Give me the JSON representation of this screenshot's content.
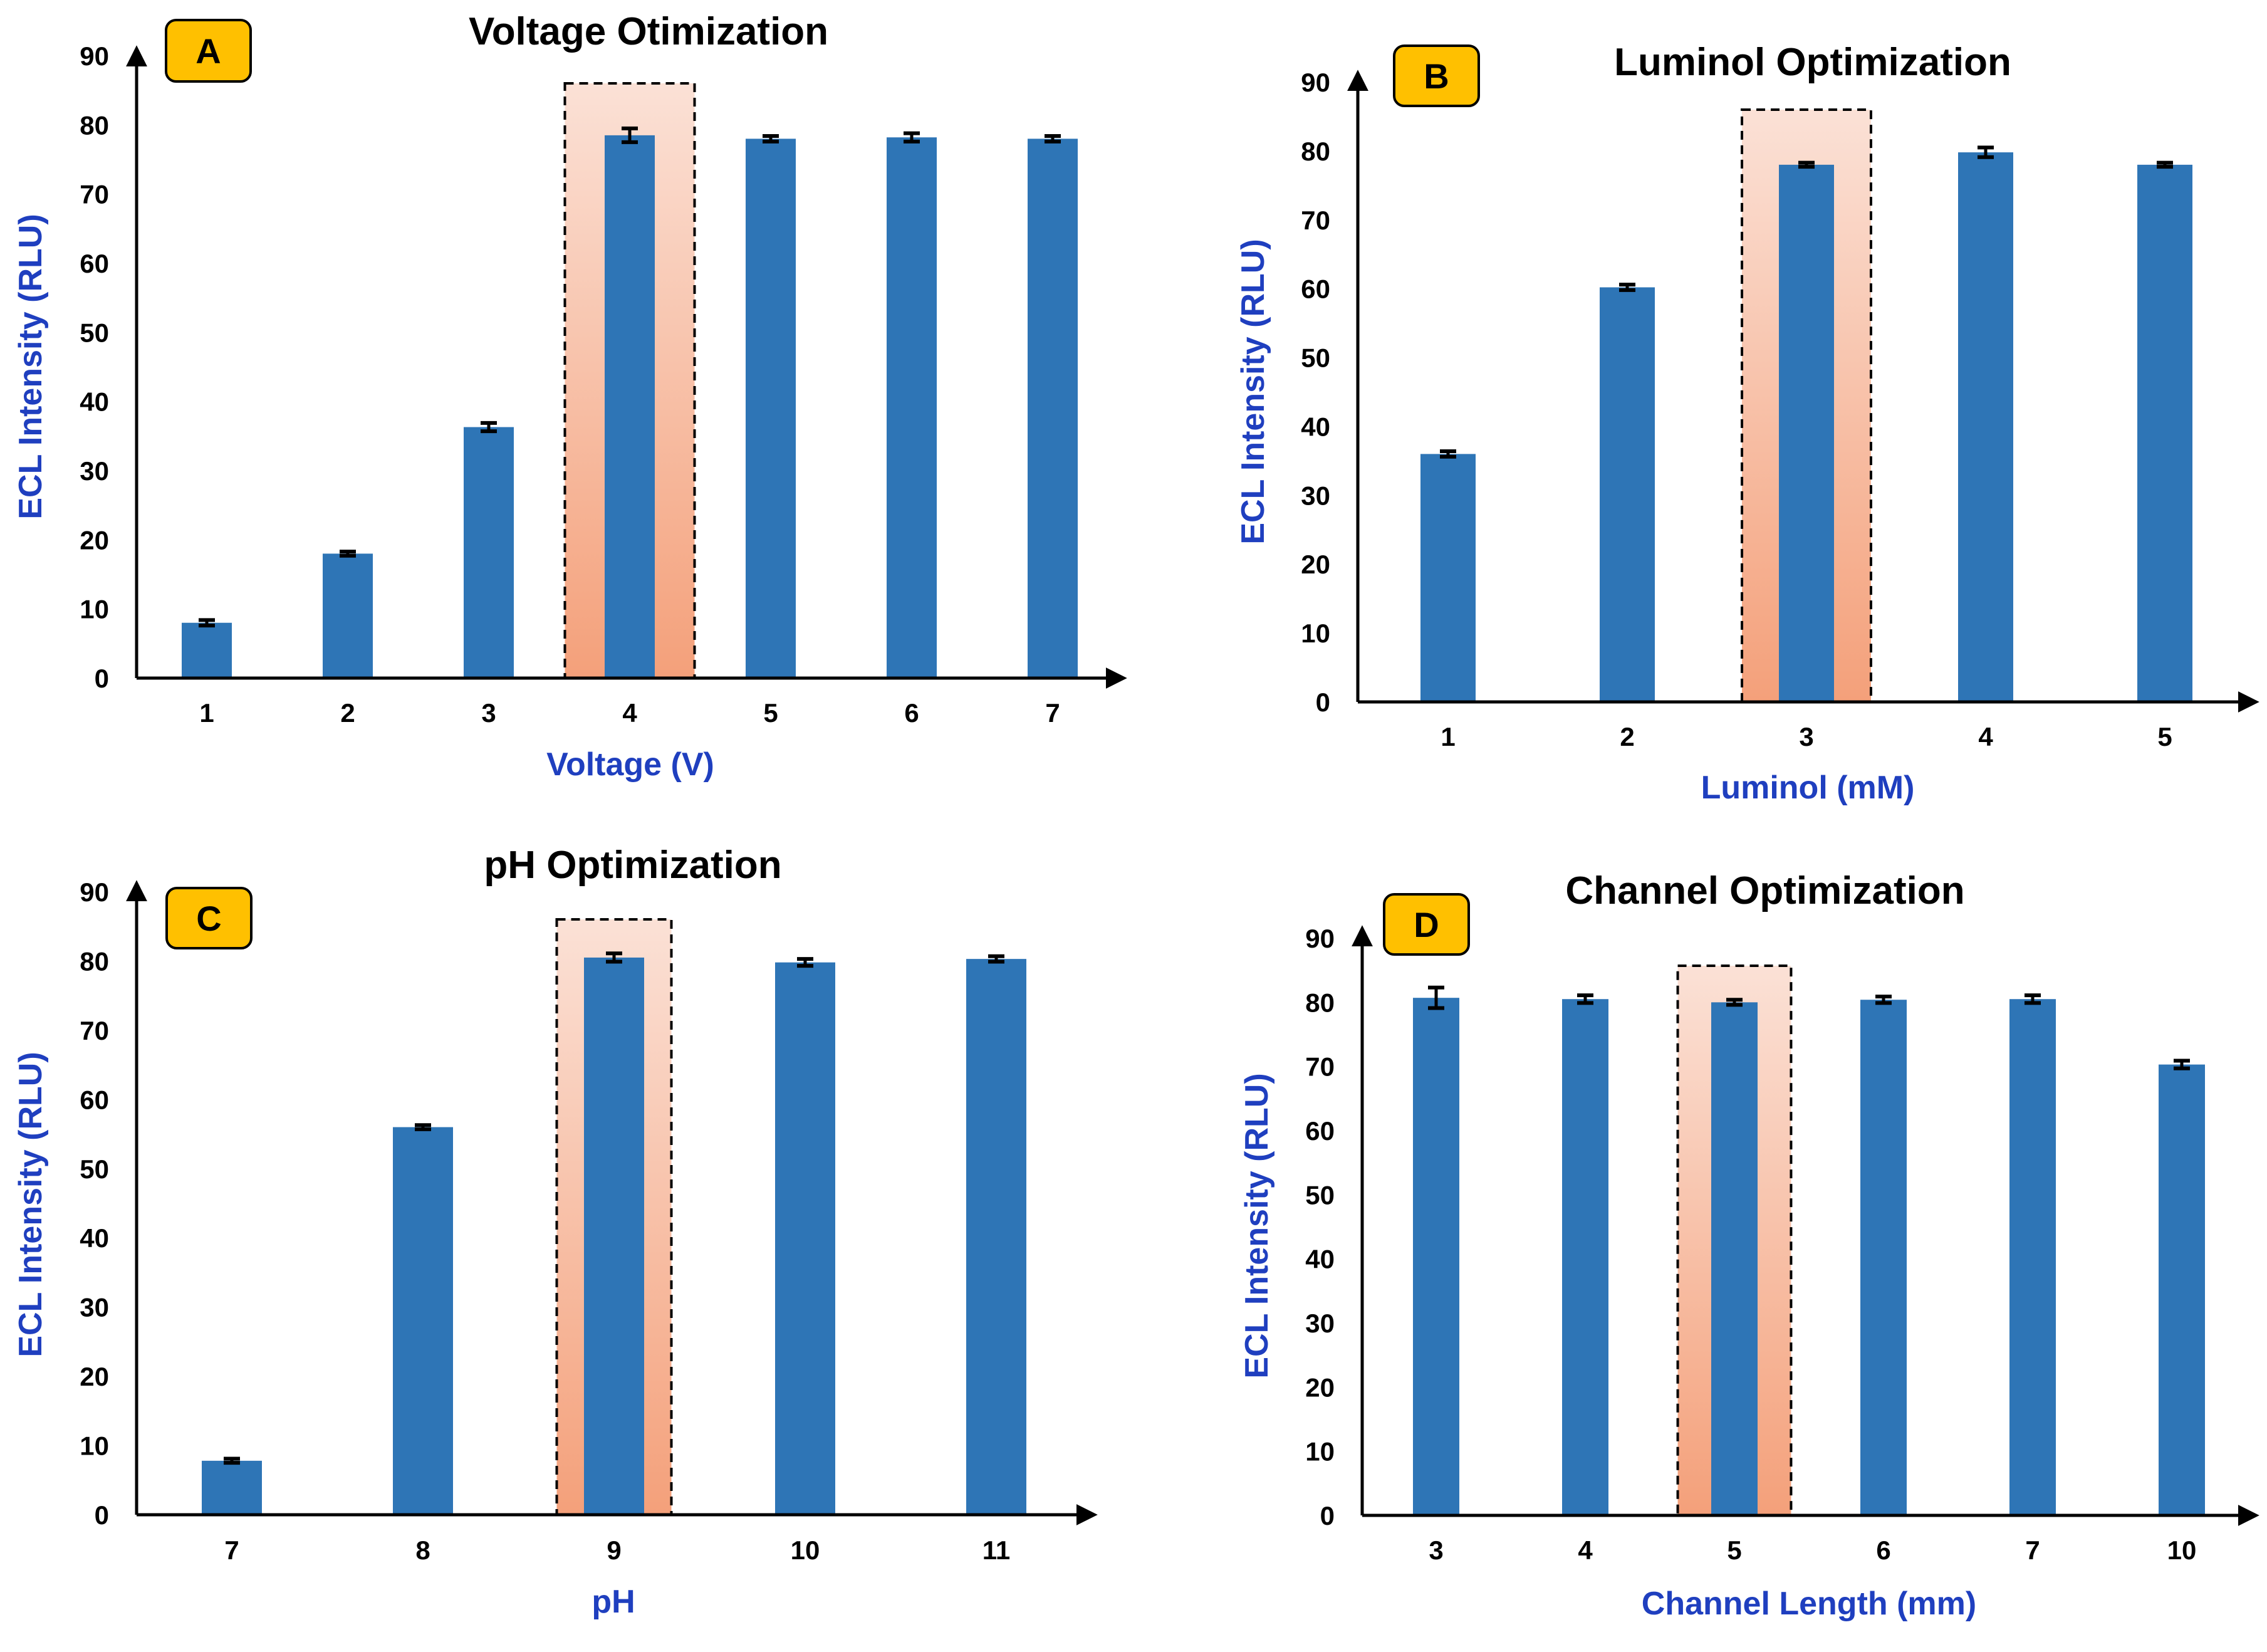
{
  "colors": {
    "bar": "#2e75b6",
    "axis_label": "#1f3fbf",
    "badge_fill": "#ffc000",
    "highlight_top": "#fbe1d6",
    "highlight_bottom": "#f4a07a"
  },
  "chart_data": [
    {
      "id": "A",
      "type": "bar",
      "panel_label": "A",
      "title": "Voltage Otimization",
      "xlabel": "Voltage (V)",
      "ylabel": "ECL Intensity (RLU)",
      "categories": [
        "1",
        "2",
        "3",
        "4",
        "5",
        "6",
        "7"
      ],
      "values": [
        8,
        18,
        36.3,
        78.5,
        78,
        78.2,
        78
      ],
      "errors": [
        0.4,
        0.3,
        0.6,
        1.0,
        0.4,
        0.6,
        0.4
      ],
      "ylim": [
        0,
        90
      ],
      "yticks": [
        "0",
        "10",
        "20",
        "30",
        "40",
        "50",
        "60",
        "70",
        "80",
        "90"
      ],
      "highlight_category": "4"
    },
    {
      "id": "B",
      "type": "bar",
      "panel_label": "B",
      "title": "Luminol Optimization",
      "xlabel": "Luminol (mM)",
      "ylabel": "ECL Intensity (RLU)",
      "categories": [
        "1",
        "2",
        "3",
        "4",
        "5"
      ],
      "values": [
        36,
        60.2,
        78,
        79.8,
        78
      ],
      "errors": [
        0.4,
        0.4,
        0.3,
        0.7,
        0.3
      ],
      "ylim": [
        0,
        90
      ],
      "yticks": [
        "0",
        "10",
        "20",
        "30",
        "40",
        "50",
        "60",
        "70",
        "80",
        "90"
      ],
      "highlight_category": "3"
    },
    {
      "id": "C",
      "type": "bar",
      "panel_label": "C",
      "title": "pH Optimization",
      "xlabel": "pH",
      "ylabel": "ECL Intensity (RLU)",
      "categories": [
        "7",
        "8",
        "9",
        "10",
        "11"
      ],
      "values": [
        7.8,
        56,
        80.5,
        79.8,
        80.3
      ],
      "errors": [
        0.3,
        0.3,
        0.6,
        0.5,
        0.4
      ],
      "ylim": [
        0,
        90
      ],
      "yticks": [
        "0",
        "10",
        "20",
        "30",
        "40",
        "50",
        "60",
        "70",
        "80",
        "90"
      ],
      "highlight_category": "9"
    },
    {
      "id": "D",
      "type": "bar",
      "panel_label": "D",
      "title": "Channel Optimization",
      "xlabel": "Channel Length (mm)",
      "ylabel": "ECL Intensity (RLU)",
      "categories": [
        "3",
        "4",
        "5",
        "6",
        "7",
        "10"
      ],
      "values": [
        80.7,
        80.5,
        80,
        80.4,
        80.5,
        70.3
      ],
      "errors": [
        1.6,
        0.6,
        0.4,
        0.5,
        0.6,
        0.6
      ],
      "ylim": [
        0,
        90
      ],
      "yticks": [
        "0",
        "10",
        "20",
        "30",
        "40",
        "50",
        "60",
        "70",
        "80",
        "90"
      ],
      "highlight_category": "5"
    }
  ]
}
